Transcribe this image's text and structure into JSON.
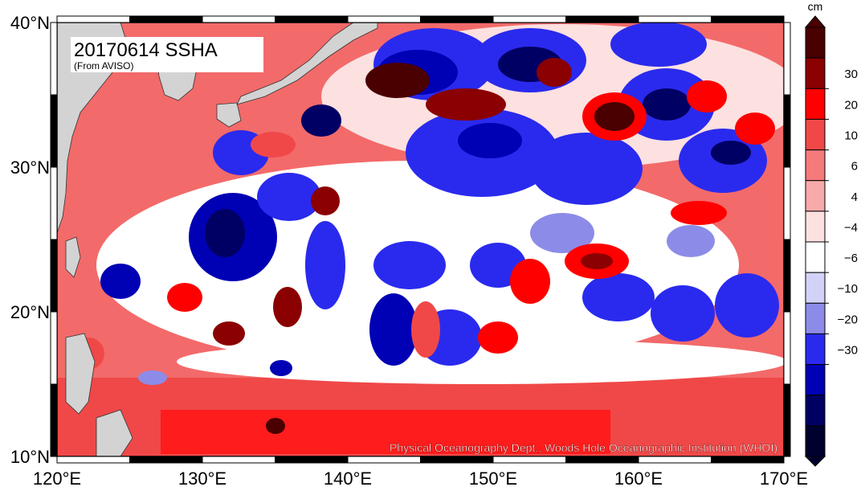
{
  "map": {
    "title": "20170614 SSHA",
    "source_note": "(From AVISO)",
    "credit": "Physical Oceanography Dept., Woods Hole Oceanographic Institution (WHOI)",
    "lon_labels": [
      "120°E",
      "130°E",
      "140°E",
      "150°E",
      "160°E",
      "170°E"
    ],
    "lat_labels": [
      "40°N",
      "30°N",
      "20°N",
      "10°N"
    ],
    "lon_range": [
      120,
      170
    ],
    "lat_range": [
      10,
      40
    ],
    "land_color": "#d3d3d3",
    "frame_color": "#000000"
  },
  "colorbar": {
    "unit": "cm",
    "tick_labels": [
      "30",
      "20",
      "10",
      "6",
      "4",
      "−4",
      "−6",
      "−10",
      "−20",
      "−30"
    ],
    "bands": [
      {
        "color": "#4a0000"
      },
      {
        "color": "#8b0000"
      },
      {
        "color": "#ff0000"
      },
      {
        "color": "#f04848"
      },
      {
        "color": "#f57a7a"
      },
      {
        "color": "#f8aaaa"
      },
      {
        "color": "#fde0e0"
      },
      {
        "color": "#ffffff"
      },
      {
        "color": "#d2d2f8"
      },
      {
        "color": "#8c8ce8"
      },
      {
        "color": "#2a2aee"
      },
      {
        "color": "#0000b4"
      },
      {
        "color": "#000064"
      },
      {
        "color": "#00002e"
      }
    ]
  }
}
